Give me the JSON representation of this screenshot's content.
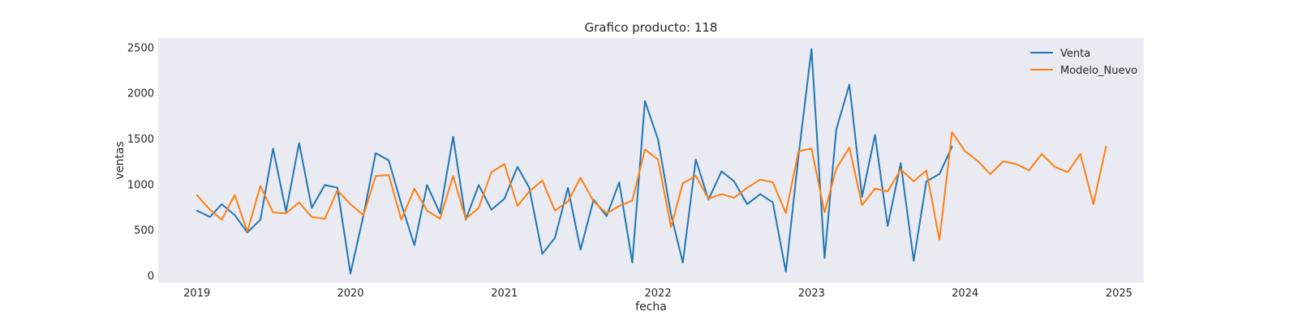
{
  "chart_data": {
    "type": "line",
    "title": "Grafico producto: 118",
    "xlabel": "fecha",
    "ylabel": "ventas",
    "xlim": [
      "2018-10-01",
      "2025-03-01"
    ],
    "ylim": [
      -80,
      2600
    ],
    "xticks": [
      "2019-01-01",
      "2020-01-01",
      "2021-01-01",
      "2022-01-01",
      "2023-01-01",
      "2024-01-01",
      "2025-01-01"
    ],
    "xtick_labels": [
      "2019",
      "2020",
      "2021",
      "2022",
      "2023",
      "2024",
      "2025"
    ],
    "yticks": [
      0,
      500,
      1000,
      1500,
      2000,
      2500
    ],
    "ytick_labels": [
      "0",
      "500",
      "1000",
      "1500",
      "2000",
      "2500"
    ],
    "grid": false,
    "background": "#eaeaf2",
    "legend": "top-right",
    "series": [
      {
        "name": "Venta",
        "color": "#1f77b4",
        "x": [
          "2019-01-01",
          "2019-02-01",
          "2019-03-01",
          "2019-04-01",
          "2019-05-01",
          "2019-06-01",
          "2019-07-01",
          "2019-08-01",
          "2019-09-01",
          "2019-10-01",
          "2019-11-01",
          "2019-12-01",
          "2020-01-01",
          "2020-02-01",
          "2020-03-01",
          "2020-04-01",
          "2020-05-01",
          "2020-06-01",
          "2020-07-01",
          "2020-08-01",
          "2020-09-01",
          "2020-10-01",
          "2020-11-01",
          "2020-12-01",
          "2021-01-01",
          "2021-02-01",
          "2021-03-01",
          "2021-04-01",
          "2021-05-01",
          "2021-06-01",
          "2021-07-01",
          "2021-08-01",
          "2021-09-01",
          "2021-10-01",
          "2021-11-01",
          "2021-12-01",
          "2022-01-01",
          "2022-02-01",
          "2022-03-01",
          "2022-04-01",
          "2022-05-01",
          "2022-06-01",
          "2022-07-01",
          "2022-08-01",
          "2022-09-01",
          "2022-10-01",
          "2022-11-01",
          "2022-12-01",
          "2023-01-01",
          "2023-02-01",
          "2023-03-01",
          "2023-04-01",
          "2023-05-01",
          "2023-06-01",
          "2023-07-01",
          "2023-08-01",
          "2023-09-01",
          "2023-10-01",
          "2023-11-01",
          "2023-12-01"
        ],
        "y": [
          710,
          640,
          780,
          660,
          470,
          610,
          1390,
          700,
          1450,
          740,
          990,
          960,
          20,
          660,
          1340,
          1260,
          780,
          330,
          990,
          680,
          1520,
          610,
          990,
          720,
          840,
          1190,
          960,
          235,
          410,
          960,
          280,
          830,
          650,
          1020,
          140,
          1910,
          1490,
          670,
          140,
          1270,
          830,
          1140,
          1030,
          780,
          890,
          800,
          40,
          1310,
          2480,
          190,
          1600,
          2090,
          860,
          1540,
          540,
          1230,
          160,
          1030,
          1110,
          1410
        ]
      },
      {
        "name": "Modelo_Nuevo",
        "color": "#ff7f0e",
        "x": [
          "2019-01-01",
          "2019-02-01",
          "2019-03-01",
          "2019-04-01",
          "2019-05-01",
          "2019-06-01",
          "2019-07-01",
          "2019-08-01",
          "2019-09-01",
          "2019-10-01",
          "2019-11-01",
          "2019-12-01",
          "2020-01-01",
          "2020-02-01",
          "2020-03-01",
          "2020-04-01",
          "2020-05-01",
          "2020-06-01",
          "2020-07-01",
          "2020-08-01",
          "2020-09-01",
          "2020-10-01",
          "2020-11-01",
          "2020-12-01",
          "2021-01-01",
          "2021-02-01",
          "2021-03-01",
          "2021-04-01",
          "2021-05-01",
          "2021-06-01",
          "2021-07-01",
          "2021-08-01",
          "2021-09-01",
          "2021-10-01",
          "2021-11-01",
          "2021-12-01",
          "2022-01-01",
          "2022-02-01",
          "2022-03-01",
          "2022-04-01",
          "2022-05-01",
          "2022-06-01",
          "2022-07-01",
          "2022-08-01",
          "2022-09-01",
          "2022-10-01",
          "2022-11-01",
          "2022-12-01",
          "2023-01-01",
          "2023-02-01",
          "2023-03-01",
          "2023-04-01",
          "2023-05-01",
          "2023-06-01",
          "2023-07-01",
          "2023-08-01",
          "2023-09-01",
          "2023-10-01",
          "2023-11-01",
          "2023-12-01",
          "2024-01-01",
          "2024-02-01",
          "2024-03-01",
          "2024-04-01",
          "2024-05-01",
          "2024-06-01",
          "2024-07-01",
          "2024-08-01",
          "2024-09-01",
          "2024-10-01",
          "2024-11-01",
          "2024-12-01"
        ],
        "y": [
          880,
          720,
          610,
          880,
          480,
          980,
          690,
          680,
          800,
          640,
          620,
          930,
          780,
          660,
          1090,
          1100,
          610,
          950,
          710,
          620,
          1090,
          620,
          740,
          1130,
          1220,
          760,
          920,
          1040,
          710,
          810,
          1070,
          810,
          680,
          760,
          820,
          1380,
          1270,
          530,
          1010,
          1090,
          840,
          890,
          850,
          960,
          1050,
          1020,
          680,
          1360,
          1390,
          690,
          1170,
          1400,
          770,
          950,
          920,
          1160,
          1030,
          1150,
          390,
          1570,
          1360,
          1250,
          1110,
          1250,
          1220,
          1150,
          1330,
          1190,
          1130,
          1330,
          780,
          1410
        ]
      }
    ]
  }
}
